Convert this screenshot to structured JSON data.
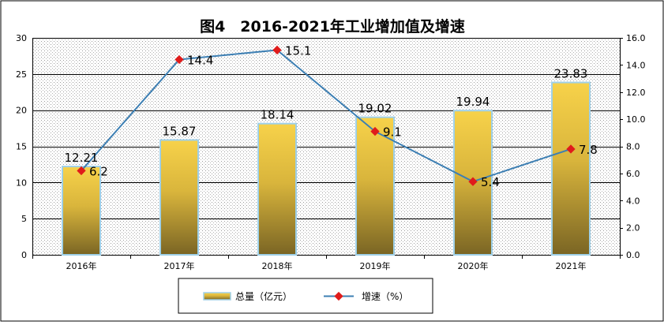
{
  "chart_data": {
    "type": "bar+line",
    "title": "图4　2016-2021年工业增加值及增速",
    "categories": [
      "2016年",
      "2017年",
      "2018年",
      "2019年",
      "2020年",
      "2021年"
    ],
    "series": [
      {
        "name": "总量（亿元）",
        "type": "bar",
        "axis": "left",
        "values": [
          12.21,
          15.87,
          18.14,
          19.02,
          19.94,
          23.83
        ],
        "labels": [
          "12.21",
          "15.87",
          "18.14",
          "19.02",
          "19.94",
          "23.83"
        ]
      },
      {
        "name": "增速（%）",
        "type": "line",
        "axis": "right",
        "values": [
          6.2,
          14.4,
          15.1,
          9.1,
          5.4,
          7.8
        ],
        "labels": [
          "6.2",
          "14.4",
          "15.1",
          "9.1",
          "5.4",
          "7.8"
        ]
      }
    ],
    "y_left": {
      "range": [
        0,
        30
      ],
      "ticks": [
        "0",
        "5",
        "10",
        "15",
        "20",
        "25",
        "30"
      ]
    },
    "y_right": {
      "range": [
        0,
        16
      ],
      "ticks": [
        "0.0",
        "2.0",
        "4.0",
        "6.0",
        "8.0",
        "10.0",
        "12.0",
        "14.0",
        "16.0"
      ]
    },
    "gridlines": true,
    "legend_position": "bottom-center",
    "colors": {
      "bar_top": "#f7d24a",
      "bar_bottom": "#7a6524",
      "bar_stroke": "#9fd0e8",
      "line": "#3d7fb3",
      "marker": "#e01b1b",
      "plot_dots": "#9a9a9a"
    }
  }
}
